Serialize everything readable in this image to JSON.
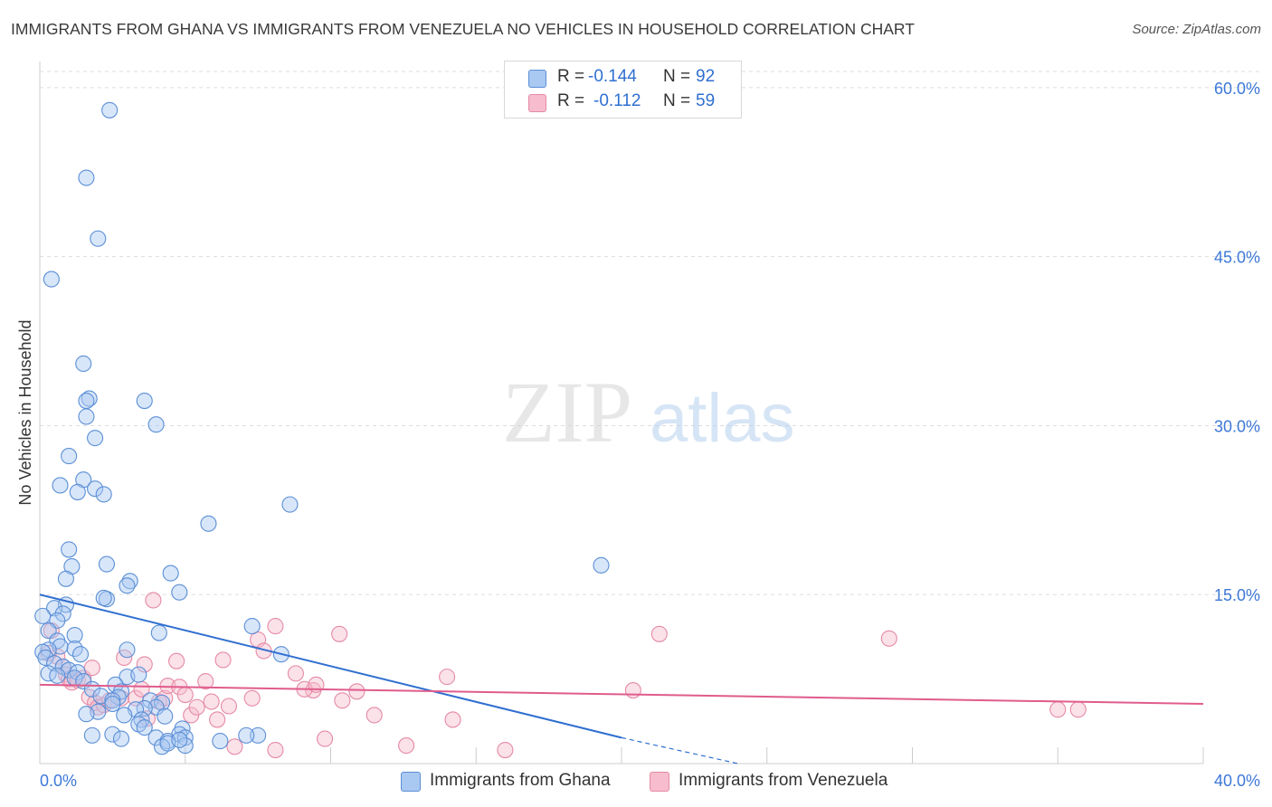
{
  "header": {
    "title": "IMMIGRANTS FROM GHANA VS IMMIGRANTS FROM VENEZUELA NO VEHICLES IN HOUSEHOLD CORRELATION CHART",
    "source": "Source: ZipAtlas.com"
  },
  "legend": {
    "r_label": "R =",
    "n_label": "N =",
    "rows": [
      {
        "r": "-0.144",
        "n": "92"
      },
      {
        "r": "-0.112",
        "n": "59"
      }
    ]
  },
  "watermark": {
    "zip": "ZIP",
    "atlas": "atlas"
  },
  "colors": {
    "ghana_fill": "#a9c8f2",
    "ghana_stroke": "#5b8fd6",
    "ghana_line": "#2f6fd0",
    "venezuela_fill": "#f7bccd",
    "venezuela_stroke": "#e58aa6",
    "venezuela_line": "#e05c8c",
    "grid": "#dddddd",
    "tick_text": "#3c78d8"
  },
  "chart_data": {
    "type": "scatter",
    "title": "IMMIGRANTS FROM GHANA VS IMMIGRANTS FROM VENEZUELA NO VEHICLES IN HOUSEHOLD CORRELATION CHART",
    "xlabel": "",
    "ylabel": "No Vehicles in Household",
    "xlim": [
      0,
      40
    ],
    "ylim": [
      0,
      62
    ],
    "x_tick_labels": [
      "0.0%",
      "40.0%"
    ],
    "y_ticks": [
      15,
      30,
      45,
      60
    ],
    "y_tick_labels": [
      "15.0%",
      "30.0%",
      "45.0%",
      "60.0%"
    ],
    "grid": true,
    "legend_position": "top-center",
    "series": [
      {
        "name": "Immigrants from Ghana",
        "r": -0.144,
        "n": 92,
        "trend": {
          "x": [
            0,
            20
          ],
          "y": [
            15.0,
            2.3
          ],
          "dashed_extension_to": [
            24,
            0
          ]
        },
        "points": [
          [
            2.4,
            58.0
          ],
          [
            1.6,
            52.0
          ],
          [
            2.0,
            46.6
          ],
          [
            0.4,
            43.0
          ],
          [
            1.5,
            35.5
          ],
          [
            1.7,
            32.4
          ],
          [
            1.6,
            32.2
          ],
          [
            3.6,
            32.2
          ],
          [
            1.6,
            30.8
          ],
          [
            4.0,
            30.1
          ],
          [
            1.9,
            28.9
          ],
          [
            1.0,
            27.3
          ],
          [
            1.5,
            25.2
          ],
          [
            0.7,
            24.7
          ],
          [
            1.9,
            24.4
          ],
          [
            1.3,
            24.1
          ],
          [
            2.2,
            23.9
          ],
          [
            8.6,
            23.0
          ],
          [
            5.8,
            21.3
          ],
          [
            19.3,
            17.6
          ],
          [
            1.0,
            19.0
          ],
          [
            2.3,
            17.7
          ],
          [
            1.1,
            17.5
          ],
          [
            4.5,
            16.9
          ],
          [
            0.9,
            16.4
          ],
          [
            3.1,
            16.2
          ],
          [
            3.0,
            15.8
          ],
          [
            4.8,
            15.2
          ],
          [
            2.3,
            14.6
          ],
          [
            2.2,
            14.7
          ],
          [
            0.9,
            14.1
          ],
          [
            0.5,
            13.8
          ],
          [
            0.8,
            13.3
          ],
          [
            0.6,
            12.7
          ],
          [
            0.1,
            13.1
          ],
          [
            7.3,
            12.2
          ],
          [
            0.3,
            11.8
          ],
          [
            4.1,
            11.6
          ],
          [
            1.2,
            11.4
          ],
          [
            0.6,
            10.9
          ],
          [
            1.2,
            10.2
          ],
          [
            0.7,
            10.4
          ],
          [
            0.3,
            10.1
          ],
          [
            0.1,
            9.9
          ],
          [
            3.0,
            10.1
          ],
          [
            0.2,
            9.4
          ],
          [
            1.4,
            9.7
          ],
          [
            8.3,
            9.7
          ],
          [
            0.5,
            8.9
          ],
          [
            0.8,
            8.6
          ],
          [
            1.0,
            8.3
          ],
          [
            1.3,
            8.1
          ],
          [
            0.3,
            8.0
          ],
          [
            0.6,
            7.8
          ],
          [
            1.2,
            7.6
          ],
          [
            3.0,
            7.7
          ],
          [
            3.4,
            7.9
          ],
          [
            1.5,
            7.3
          ],
          [
            2.6,
            7.0
          ],
          [
            1.8,
            6.6
          ],
          [
            2.8,
            6.4
          ],
          [
            2.1,
            6.0
          ],
          [
            2.7,
            5.9
          ],
          [
            2.5,
            5.6
          ],
          [
            2.5,
            5.3
          ],
          [
            3.8,
            5.6
          ],
          [
            4.2,
            5.4
          ],
          [
            4.0,
            5.0
          ],
          [
            3.6,
            4.9
          ],
          [
            3.3,
            4.8
          ],
          [
            2.0,
            4.6
          ],
          [
            1.6,
            4.4
          ],
          [
            2.9,
            4.3
          ],
          [
            4.3,
            4.2
          ],
          [
            3.5,
            3.9
          ],
          [
            3.4,
            3.5
          ],
          [
            3.6,
            3.2
          ],
          [
            4.9,
            3.1
          ],
          [
            4.8,
            2.6
          ],
          [
            2.5,
            2.6
          ],
          [
            1.8,
            2.5
          ],
          [
            7.5,
            2.5
          ],
          [
            7.1,
            2.5
          ],
          [
            5.0,
            2.3
          ],
          [
            4.0,
            2.3
          ],
          [
            2.8,
            2.2
          ],
          [
            4.4,
            2.0
          ],
          [
            6.2,
            2.0
          ],
          [
            5.0,
            1.6
          ],
          [
            4.2,
            1.5
          ],
          [
            4.4,
            1.8
          ],
          [
            4.8,
            2.1
          ]
        ]
      },
      {
        "name": "Immigrants from Venezuela",
        "r": -0.112,
        "n": 59,
        "trend": {
          "x": [
            0,
            40
          ],
          "y": [
            7.0,
            5.3
          ]
        },
        "points": [
          [
            0.4,
            11.8
          ],
          [
            0.6,
            9.5
          ],
          [
            0.8,
            8.6
          ],
          [
            0.9,
            7.9
          ],
          [
            1.0,
            7.5
          ],
          [
            1.1,
            7.2
          ],
          [
            1.3,
            7.4
          ],
          [
            1.5,
            7.6
          ],
          [
            1.8,
            8.5
          ],
          [
            1.7,
            5.9
          ],
          [
            1.9,
            5.4
          ],
          [
            2.0,
            5.0
          ],
          [
            2.2,
            5.2
          ],
          [
            2.4,
            5.6
          ],
          [
            2.8,
            5.8
          ],
          [
            2.9,
            9.4
          ],
          [
            3.3,
            5.8
          ],
          [
            3.5,
            6.6
          ],
          [
            3.6,
            8.8
          ],
          [
            3.7,
            4.0
          ],
          [
            3.9,
            14.5
          ],
          [
            4.1,
            5.5
          ],
          [
            4.3,
            5.8
          ],
          [
            4.4,
            6.9
          ],
          [
            4.7,
            9.1
          ],
          [
            4.8,
            6.8
          ],
          [
            5.0,
            6.1
          ],
          [
            5.2,
            4.3
          ],
          [
            5.4,
            5.0
          ],
          [
            5.7,
            7.3
          ],
          [
            5.9,
            5.5
          ],
          [
            6.1,
            3.9
          ],
          [
            6.3,
            9.2
          ],
          [
            6.5,
            5.1
          ],
          [
            6.7,
            1.5
          ],
          [
            7.3,
            5.8
          ],
          [
            7.5,
            11.0
          ],
          [
            7.7,
            10.0
          ],
          [
            8.1,
            12.2
          ],
          [
            8.1,
            1.2
          ],
          [
            8.8,
            8.0
          ],
          [
            9.4,
            6.5
          ],
          [
            9.1,
            6.6
          ],
          [
            9.5,
            7.0
          ],
          [
            9.8,
            2.2
          ],
          [
            10.3,
            11.5
          ],
          [
            10.4,
            5.6
          ],
          [
            10.9,
            6.4
          ],
          [
            12.6,
            1.6
          ],
          [
            14.0,
            7.7
          ],
          [
            14.2,
            3.9
          ],
          [
            16.0,
            1.2
          ],
          [
            20.4,
            6.5
          ],
          [
            21.3,
            11.5
          ],
          [
            29.2,
            11.1
          ],
          [
            35.7,
            4.8
          ],
          [
            35.0,
            4.8
          ],
          [
            11.5,
            4.3
          ],
          [
            0.3,
            9.8
          ]
        ]
      }
    ]
  }
}
